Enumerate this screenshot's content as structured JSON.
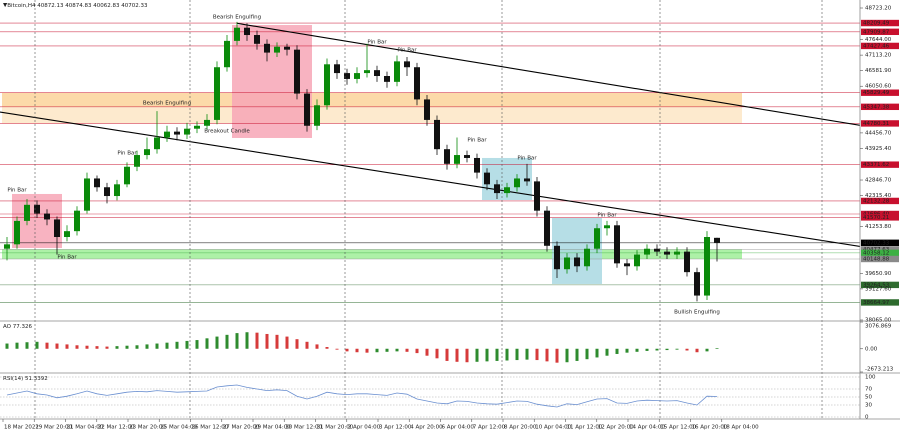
{
  "chart_data": {
    "type": "candlestick",
    "symbol": "Bitcoin,H4",
    "ylim": [
      38065,
      48723.2
    ],
    "yticks": [
      {
        "value": 48723.2,
        "label": "48723.20"
      },
      {
        "value": 47644,
        "label": "47644.00"
      },
      {
        "value": 47113.2,
        "label": "47113.20"
      },
      {
        "value": 46581.9,
        "label": "46581.90"
      },
      {
        "value": 46050.6,
        "label": "46050.60"
      },
      {
        "value": 44456.7,
        "label": "44456.70"
      },
      {
        "value": 43925.4,
        "label": "43925.40"
      },
      {
        "value": 42846.7,
        "label": "42846.70"
      },
      {
        "value": 42315.4,
        "label": "42315.40"
      },
      {
        "value": 41253.8,
        "label": "41253.80"
      },
      {
        "value": 39650.9,
        "label": "39650.90"
      },
      {
        "value": 39127.6,
        "label": "39127.60"
      },
      {
        "value": 38065,
        "label": "38065.00"
      }
    ],
    "up_color": "#0a8a0a",
    "down_color": "#111111",
    "ohlc": [
      [
        40500,
        40900,
        40100,
        40650
      ],
      [
        40650,
        41600,
        40500,
        41450
      ],
      [
        41450,
        42200,
        41300,
        42000
      ],
      [
        42000,
        42150,
        41550,
        41700
      ],
      [
        41700,
        41850,
        41300,
        41500
      ],
      [
        41500,
        41600,
        40300,
        40900
      ],
      [
        40900,
        41300,
        40750,
        41100
      ],
      [
        41100,
        41950,
        40950,
        41800
      ],
      [
        41800,
        43100,
        41700,
        42900
      ],
      [
        42900,
        43000,
        42450,
        42600
      ],
      [
        42600,
        42750,
        42050,
        42300
      ],
      [
        42300,
        42850,
        42150,
        42700
      ],
      [
        42700,
        43450,
        42600,
        43300
      ],
      [
        43300,
        43850,
        43150,
        43700
      ],
      [
        43700,
        44300,
        43550,
        43900
      ],
      [
        43900,
        45200,
        43750,
        44300
      ],
      [
        44300,
        44700,
        44150,
        44500
      ],
      [
        44500,
        44650,
        44200,
        44400
      ],
      [
        44400,
        44800,
        44250,
        44600
      ],
      [
        44600,
        44850,
        44450,
        44700
      ],
      [
        44700,
        45100,
        44550,
        44900
      ],
      [
        44900,
        46900,
        44750,
        46700
      ],
      [
        46700,
        47800,
        46550,
        47600
      ],
      [
        47600,
        48250,
        47450,
        48050
      ],
      [
        48050,
        48200,
        47600,
        47800
      ],
      [
        47800,
        47950,
        47300,
        47500
      ],
      [
        47500,
        47650,
        46900,
        47200
      ],
      [
        47200,
        47550,
        47050,
        47400
      ],
      [
        47400,
        47500,
        47100,
        47300
      ],
      [
        47300,
        47450,
        45600,
        45800
      ],
      [
        45800,
        45950,
        44500,
        44700
      ],
      [
        44700,
        45600,
        44550,
        45400
      ],
      [
        45400,
        47000,
        45250,
        46800
      ],
      [
        46800,
        46950,
        46300,
        46500
      ],
      [
        46500,
        46650,
        46100,
        46300
      ],
      [
        46300,
        46700,
        46150,
        46500
      ],
      [
        46500,
        47500,
        46350,
        46600
      ],
      [
        46600,
        46750,
        46200,
        46400
      ],
      [
        46400,
        46550,
        46000,
        46200
      ],
      [
        46200,
        47100,
        46050,
        46900
      ],
      [
        46900,
        47050,
        46400,
        46700
      ],
      [
        46700,
        46850,
        45400,
        45600
      ],
      [
        45600,
        45750,
        44700,
        44900
      ],
      [
        44900,
        45050,
        43700,
        43900
      ],
      [
        43900,
        44050,
        43200,
        43400
      ],
      [
        43400,
        44300,
        43250,
        43700
      ],
      [
        43700,
        43850,
        43450,
        43600
      ],
      [
        43600,
        43750,
        42900,
        43100
      ],
      [
        43100,
        43250,
        42500,
        42700
      ],
      [
        42700,
        42850,
        42200,
        42400
      ],
      [
        42400,
        42750,
        42250,
        42600
      ],
      [
        42600,
        43050,
        42450,
        42900
      ],
      [
        42900,
        43400,
        42650,
        42800
      ],
      [
        42800,
        42950,
        41600,
        41800
      ],
      [
        41800,
        41950,
        40400,
        40600
      ],
      [
        40600,
        40750,
        39500,
        39800
      ],
      [
        39800,
        40350,
        39650,
        40200
      ],
      [
        40200,
        40350,
        39700,
        39900
      ],
      [
        39900,
        40650,
        39750,
        40500
      ],
      [
        40500,
        41350,
        40350,
        41200
      ],
      [
        41200,
        41450,
        40950,
        41300
      ],
      [
        41300,
        41450,
        39850,
        40000
      ],
      [
        40000,
        40150,
        39600,
        39900
      ],
      [
        39900,
        40450,
        39750,
        40300
      ],
      [
        40300,
        40650,
        40150,
        40500
      ],
      [
        40500,
        40650,
        40250,
        40400
      ],
      [
        40400,
        40550,
        40150,
        40300
      ],
      [
        40300,
        40550,
        40150,
        40400
      ],
      [
        40400,
        40550,
        39550,
        39700
      ],
      [
        39700,
        39850,
        38700,
        38900
      ],
      [
        38900,
        41100,
        38750,
        40900
      ],
      [
        40872.13,
        40874.83,
        40062.83,
        40702.33
      ]
    ],
    "levels": [
      {
        "value": 48209.49,
        "label": "48209.49",
        "color": "#c8102e"
      },
      {
        "value": 47909.87,
        "label": "47909.87",
        "color": "#c8102e"
      },
      {
        "value": 47427.46,
        "label": "47427.46",
        "color": "#c8102e"
      },
      {
        "value": 45829.49,
        "label": "45829.49",
        "color": "#c8102e"
      },
      {
        "value": 45347.38,
        "label": "45347.38",
        "color": "#c8102e"
      },
      {
        "value": 44780.31,
        "label": "44780.31",
        "color": "#c8102e"
      },
      {
        "value": 43371.62,
        "label": "43371.62",
        "color": "#c8102e"
      },
      {
        "value": 42132.28,
        "label": "42132.28",
        "color": "#c8102e"
      },
      {
        "value": 41686.4,
        "label": "41686.40",
        "color": "#c8102e"
      },
      {
        "value": 41570.21,
        "label": "41570.21",
        "color": "#c8102e"
      },
      {
        "value": 40702.33,
        "label": "40702.33",
        "color": "#000000"
      },
      {
        "value": 40477.63,
        "label": "40477.63",
        "color": "#8a8a8a"
      },
      {
        "value": 40358.12,
        "label": "40358.12",
        "color": "#3cb043"
      },
      {
        "value": 40148.88,
        "label": "40148.88",
        "color": "#8a8a8a"
      },
      {
        "value": 39264.53,
        "label": "39264.53",
        "color": "#2e6b2e"
      },
      {
        "value": 38664.97,
        "label": "38664.97",
        "color": "#2e6b2e"
      }
    ],
    "zones": [
      {
        "from_bar": 0,
        "to_bar": 73,
        "high": 45829.49,
        "low": 45347.38,
        "color": "#fbd39a"
      },
      {
        "from_bar": 0,
        "to_bar": 73,
        "high": 45347.38,
        "low": 44780.31,
        "color": "#fde6c6"
      },
      {
        "from_bar": 0,
        "to_bar": 73,
        "high": 40477.63,
        "low": 40148.88,
        "color": "#9fef98"
      },
      {
        "from_bar": 23,
        "to_bar": 30,
        "high": 48142,
        "low": 44283,
        "color": "#f7a6b6"
      },
      {
        "from_bar": 1,
        "to_bar": 5,
        "high": 42370,
        "low": 40525,
        "color": "#f7a6b6"
      },
      {
        "from_bar": 48,
        "to_bar": 52,
        "high": 43600,
        "low": 42164,
        "color": "#a9d8e2"
      },
      {
        "from_bar": 55,
        "to_bar": 59,
        "high": 41550,
        "low": 39296,
        "color": "#a9d8e2"
      }
    ],
    "trendlines": [
      {
        "points": [
          [
            23,
            48200
          ],
          [
            86.3,
            44660
          ]
        ]
      },
      {
        "points": [
          [
            -0.7,
            45170
          ],
          [
            86.3,
            40525
          ]
        ]
      }
    ],
    "annotations": [
      {
        "text": "Bearish Engulfing",
        "bar": 23,
        "price": 48415
      },
      {
        "text": "Pin Bar",
        "bar": 37,
        "price": 47560
      },
      {
        "text": "Pin Bar",
        "bar": 40,
        "price": 47290
      },
      {
        "text": "Bearish Engulfing",
        "bar": 16,
        "price": 45480
      },
      {
        "text": "Breakout Candle",
        "bar": 22,
        "price": 44520
      },
      {
        "text": "Pin Bar",
        "bar": 12,
        "price": 43770
      },
      {
        "text": "Pin Bar",
        "bar": 47,
        "price": 44210
      },
      {
        "text": "Pin Bar",
        "bar": 52,
        "price": 43600
      },
      {
        "text": "Pin Bar",
        "bar": 1,
        "price": 42510
      },
      {
        "text": "Pin Bar",
        "bar": 60,
        "price": 41650
      },
      {
        "text": "Pin Bar",
        "bar": 6,
        "price": 40220
      },
      {
        "text": "Bullish Engulfing",
        "bar": 69,
        "price": 38340
      }
    ],
    "ao": {
      "name": "AO",
      "ylim": [
        -2673.213,
        3076.869
      ],
      "yticks": [
        3076.869,
        {
          "value": 0,
          "label": "0.00"
        },
        -2673.213
      ],
      "up_color": "#2e8b2e",
      "down_color": "#d63a3a",
      "values": [
        600,
        700,
        750,
        800,
        700,
        600,
        500,
        400,
        350,
        300,
        250,
        300,
        350,
        400,
        500,
        600,
        700,
        800,
        900,
        1000,
        1200,
        1400,
        1600,
        1800,
        1900,
        1850,
        1700,
        1600,
        1400,
        1100,
        800,
        500,
        200,
        -100,
        -300,
        -400,
        -450,
        -400,
        -350,
        -300,
        -350,
        -500,
        -800,
        -1100,
        -1400,
        -1500,
        -1550,
        -1500,
        -1450,
        -1400,
        -1350,
        -1300,
        -1250,
        -1300,
        -1450,
        -1600,
        -1550,
        -1400,
        -1200,
        -1000,
        -800,
        -600,
        -450,
        -350,
        -250,
        -200,
        -150,
        -100,
        -200,
        -400,
        -300,
        77.326
      ]
    },
    "rsi": {
      "name": "RSI(14)",
      "ylim": [
        0,
        100
      ],
      "yticks": [
        100,
        70,
        50,
        30,
        0
      ],
      "color": "#6a8fd0",
      "values": [
        55,
        60,
        65,
        58,
        55,
        48,
        52,
        58,
        65,
        58,
        54,
        58,
        62,
        64,
        63,
        66,
        64,
        62,
        63,
        64,
        65,
        75,
        78,
        80,
        74,
        70,
        66,
        68,
        66,
        52,
        45,
        52,
        62,
        58,
        56,
        58,
        58,
        56,
        54,
        60,
        57,
        45,
        40,
        35,
        33,
        40,
        39,
        35,
        33,
        32,
        36,
        40,
        39,
        32,
        28,
        25,
        33,
        31,
        38,
        45,
        46,
        35,
        34,
        40,
        42,
        41,
        40,
        41,
        35,
        30,
        52,
        51.3392
      ]
    },
    "time_labels": [
      "18 Mar 2022",
      "19 Mar 20:00",
      "21 Mar 04:00",
      "22 Mar 12:00",
      "23 Mar 20:00",
      "25 Mar 04:00",
      "26 Mar 12:00",
      "27 Mar 20:00",
      "29 Mar 04:00",
      "30 Mar 12:00",
      "31 Mar 20:00",
      "2 Apr 04:00",
      "3 Apr 12:00",
      "4 Apr 20:00",
      "6 Apr 04:00",
      "7 Apr 12:00",
      "8 Apr 20:00",
      "10 Apr 04:00",
      "11 Apr 12:00",
      "12 Apr 20:00",
      "14 Apr 04:00",
      "15 Apr 12:00",
      "16 Apr 20:00",
      "18 Apr 04:00"
    ]
  }
}
